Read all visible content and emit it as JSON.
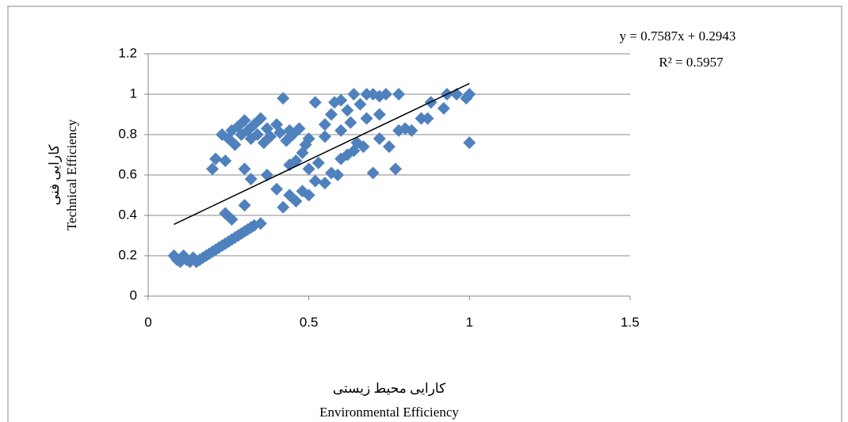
{
  "chart_data": {
    "type": "scatter",
    "xlabel_fa": "کارایی محیط زیستی",
    "xlabel": "Environmental Efficiency",
    "ylabel_fa": "کارایی فنی",
    "ylabel": "Technical Efficiency",
    "equation": "y = 0.7587x + 0.2943",
    "r_squared": "R² = 0.5957",
    "xlim": [
      0,
      1.5
    ],
    "xticks": [
      0,
      0.5,
      1,
      1.5
    ],
    "ylim": [
      0,
      1.2
    ],
    "yticks": [
      0,
      0.2,
      0.4,
      0.6,
      0.8,
      1,
      1.2
    ],
    "grid": true,
    "series": [
      {
        "color": "#4f81bd",
        "x": [
          0.08,
          0.09,
          0.1,
          0.11,
          0.12,
          0.13,
          0.14,
          0.15,
          0.16,
          0.17,
          0.18,
          0.19,
          0.2,
          0.21,
          0.22,
          0.23,
          0.24,
          0.25,
          0.26,
          0.27,
          0.28,
          0.29,
          0.3,
          0.31,
          0.32,
          0.33,
          0.35,
          0.3,
          0.24,
          0.26,
          0.2,
          0.21,
          0.24,
          0.23,
          0.25,
          0.26,
          0.27,
          0.28,
          0.29,
          0.3,
          0.31,
          0.32,
          0.33,
          0.34,
          0.35,
          0.36,
          0.37,
          0.38,
          0.4,
          0.41,
          0.42,
          0.43,
          0.44,
          0.45,
          0.47,
          0.48,
          0.5,
          0.3,
          0.32,
          0.37,
          0.4,
          0.42,
          0.44,
          0.46,
          0.48,
          0.5,
          0.52,
          0.5,
          0.53,
          0.55,
          0.57,
          0.59,
          0.6,
          0.62,
          0.64,
          0.65,
          0.67,
          0.7,
          0.72,
          0.75,
          0.77,
          0.52,
          0.55,
          0.57,
          0.58,
          0.6,
          0.62,
          0.64,
          0.66,
          0.68,
          0.7,
          0.72,
          0.74,
          0.78,
          0.6,
          0.63,
          0.68,
          0.72,
          0.78,
          0.8,
          0.82,
          0.85,
          0.87,
          0.88,
          0.92,
          0.93,
          0.96,
          0.99,
          1.0,
          1.0,
          0.44,
          0.46,
          0.49,
          0.55
        ],
        "values": [
          0.2,
          0.18,
          0.17,
          0.2,
          0.18,
          0.17,
          0.19,
          0.17,
          0.18,
          0.19,
          0.2,
          0.21,
          0.22,
          0.23,
          0.24,
          0.25,
          0.26,
          0.27,
          0.28,
          0.29,
          0.3,
          0.31,
          0.32,
          0.33,
          0.34,
          0.35,
          0.36,
          0.45,
          0.41,
          0.38,
          0.63,
          0.68,
          0.67,
          0.8,
          0.78,
          0.82,
          0.75,
          0.84,
          0.8,
          0.87,
          0.82,
          0.78,
          0.85,
          0.8,
          0.88,
          0.76,
          0.83,
          0.79,
          0.85,
          0.81,
          0.98,
          0.77,
          0.82,
          0.8,
          0.83,
          0.71,
          0.78,
          0.63,
          0.58,
          0.6,
          0.53,
          0.44,
          0.5,
          0.47,
          0.52,
          0.5,
          0.57,
          0.63,
          0.66,
          0.56,
          0.61,
          0.6,
          0.68,
          0.7,
          0.72,
          0.76,
          0.74,
          0.61,
          0.78,
          0.74,
          0.63,
          0.96,
          0.85,
          0.9,
          0.96,
          0.97,
          0.92,
          1.0,
          0.95,
          1.0,
          1.0,
          0.99,
          1.0,
          1.0,
          0.82,
          0.86,
          0.88,
          0.9,
          0.82,
          0.83,
          0.82,
          0.88,
          0.88,
          0.96,
          0.93,
          1.0,
          1.0,
          0.98,
          1.0,
          0.76,
          0.65,
          0.67,
          0.75,
          0.79
        ]
      }
    ],
    "trendline": {
      "color": "#000000",
      "x": [
        0.08,
        1.0
      ],
      "values": [
        0.355,
        1.053
      ]
    }
  }
}
